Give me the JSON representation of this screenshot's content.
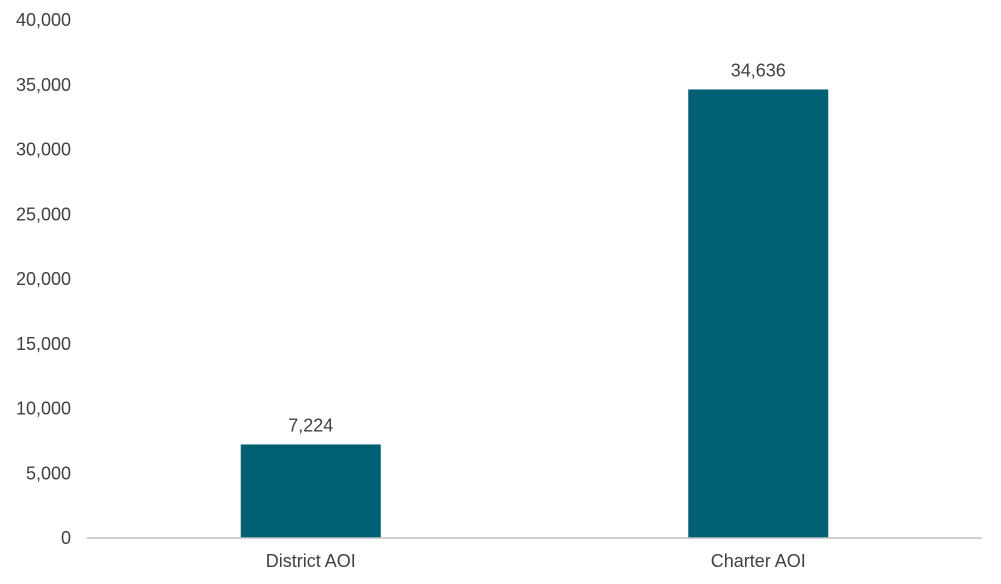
{
  "chart_data": {
    "type": "bar",
    "categories": [
      "District AOI",
      "Charter AOI"
    ],
    "values": [
      7224,
      34636
    ],
    "data_labels": [
      "7,224",
      "34,636"
    ],
    "ylim": [
      0,
      40000
    ],
    "y_ticks": [
      0,
      5000,
      10000,
      15000,
      20000,
      25000,
      30000,
      35000,
      40000
    ],
    "y_tick_labels": [
      "0",
      "5,000",
      "10,000",
      "15,000",
      "20,000",
      "25,000",
      "30,000",
      "35,000",
      "40,000"
    ],
    "title": "",
    "xlabel": "",
    "ylabel": "",
    "grid": false,
    "legend": "none",
    "colors": {
      "bar": "#005f73",
      "axis": "#bfbfbf",
      "text": "#404040"
    }
  }
}
